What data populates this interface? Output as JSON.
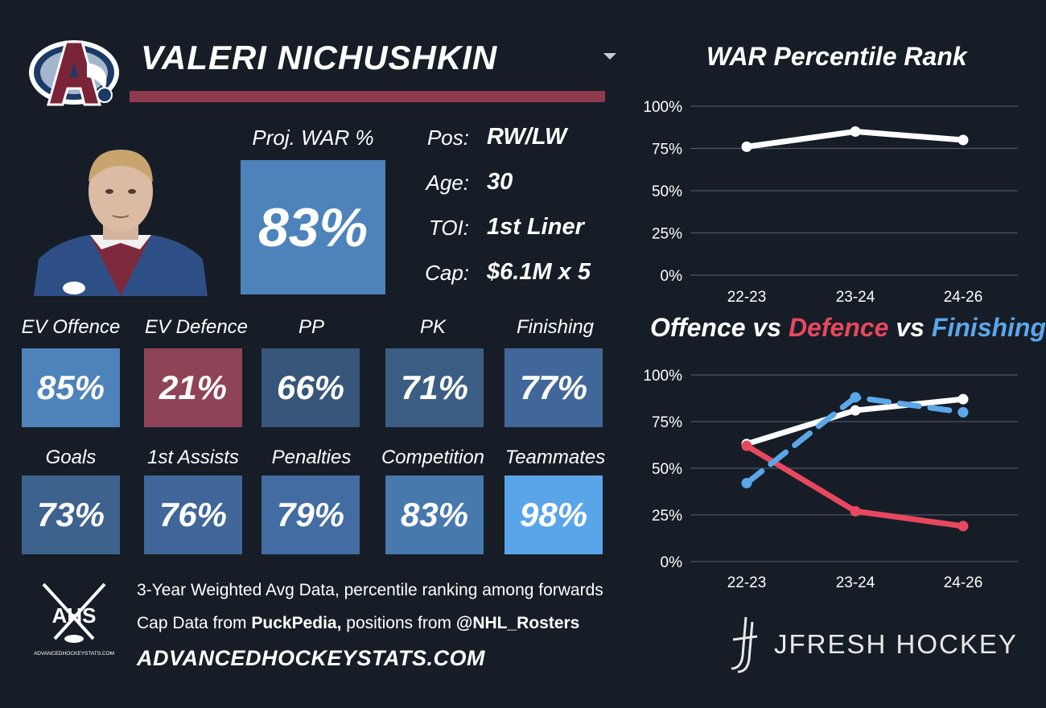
{
  "player": {
    "name": "VALERI NICHUSHKIN"
  },
  "colors": {
    "background": "#161d27",
    "accent_bar": "#8d3a4c",
    "defence_red": "#e8485f",
    "finishing_blue": "#5ba7ea"
  },
  "icons": {
    "team_logo": "avalanche-logo",
    "dropdown": "chevron-down-icon",
    "photo": "player-headshot",
    "ahs_logo": "ahs-crossed-sticks-logo",
    "jfresh_logo": "jfresh-stick-logo"
  },
  "proj_war": {
    "label": "Proj. WAR %",
    "value": "83%"
  },
  "info": [
    {
      "label": "Pos:",
      "value": "RW/LW"
    },
    {
      "label": "Age:",
      "value": "30"
    },
    {
      "label": "TOI:",
      "value": "1st Liner"
    },
    {
      "label": "Cap:",
      "value": "$6.1M x 5"
    }
  ],
  "tiles_row1": [
    {
      "label": "EV Offence",
      "value": "85%",
      "color": "#4d83ba"
    },
    {
      "label": "EV Defence",
      "value": "21%",
      "color": "#8f4356"
    },
    {
      "label": "PP",
      "value": "66%",
      "color": "#38557a"
    },
    {
      "label": "PK",
      "value": "71%",
      "color": "#3c5d83"
    },
    {
      "label": "Finishing",
      "value": "77%",
      "color": "#41679a"
    }
  ],
  "tiles_row2": [
    {
      "label": "Goals",
      "value": "73%",
      "color": "#3e628e"
    },
    {
      "label": "1st Assists",
      "value": "76%",
      "color": "#41669a"
    },
    {
      "label": "Penalties",
      "value": "79%",
      "color": "#426ca2"
    },
    {
      "label": "Competition",
      "value": "83%",
      "color": "#4779ad"
    },
    {
      "label": "Teammates",
      "value": "98%",
      "color": "#5aa5ea"
    }
  ],
  "footer": {
    "line1": "3-Year Weighted Avg Data, percentile ranking among forwards",
    "line2_pre": "Cap Data from ",
    "line2_bold1": "PuckPedia,",
    "line2_mid": " positions from ",
    "line2_bold2": "@NHL_Rosters",
    "site": "ADVANCEDHOCKEYSTATS.COM",
    "ahs_text": "AHS",
    "ahs_small": "ADVANCEDHOCKEYSTATS.COM"
  },
  "brand": "JFRESH HOCKEY",
  "chart1_title": "WAR Percentile Rank",
  "chart2_title": {
    "part1": "Offence",
    "vs1": " vs ",
    "part2": "Defence",
    "vs2": " vs ",
    "part3": "Finishing"
  },
  "chart_data": [
    {
      "type": "line",
      "title": "WAR Percentile Rank",
      "categories": [
        "22-23",
        "23-24",
        "24-26"
      ],
      "y_ticks": [
        "0%",
        "25%",
        "50%",
        "75%",
        "100%"
      ],
      "ylim": [
        0,
        100
      ],
      "grid": true,
      "series": [
        {
          "values": [
            76,
            85,
            80
          ],
          "color": "#ffffff",
          "dashed": false
        }
      ]
    },
    {
      "type": "line",
      "title": "Offence vs Defence vs Finishing",
      "categories": [
        "22-23",
        "23-24",
        "24-26"
      ],
      "y_ticks": [
        "0%",
        "25%",
        "50%",
        "75%",
        "100%"
      ],
      "ylim": [
        0,
        100
      ],
      "grid": true,
      "series": [
        {
          "name": "Offence",
          "values": [
            63,
            81,
            87
          ],
          "color": "#ffffff",
          "dashed": false
        },
        {
          "name": "Defence",
          "values": [
            62,
            27,
            19
          ],
          "color": "#e8485f",
          "dashed": false
        },
        {
          "name": "Finishing",
          "values": [
            42,
            88,
            80
          ],
          "color": "#5ba7ea",
          "dashed": true
        }
      ]
    }
  ]
}
